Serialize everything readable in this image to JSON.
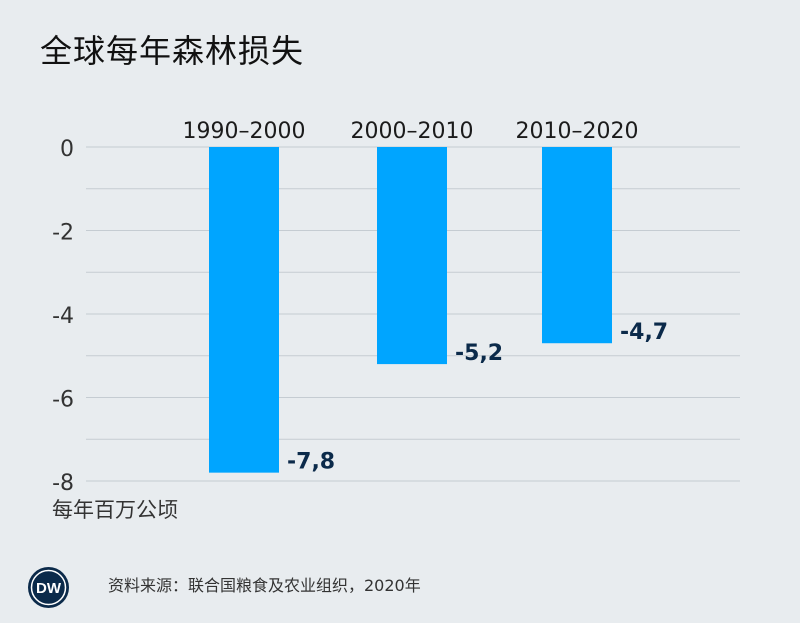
{
  "title": "全球每年森林损失",
  "unit_label": "每年百万公顷",
  "source": "资料来源：联合国粮食及农业组织，2020年",
  "logo_text": "DW",
  "colors": {
    "bar": "#00a5ff",
    "grid": "#c5ccd2",
    "axis_text": "#333333",
    "value_text": "#0b2a4a",
    "background": "#e8ecef"
  },
  "chart_data": {
    "type": "bar",
    "categories": [
      "1990–2000",
      "2000–2010",
      "2010–2020"
    ],
    "values": [
      -7.8,
      -5.2,
      -4.7
    ],
    "value_labels": [
      "-7,8",
      "-5,2",
      "-4,7"
    ],
    "yticks": [
      0,
      -2,
      -4,
      -6,
      -8
    ],
    "ytick_labels": [
      "0",
      "-2",
      "-4",
      "-6",
      "-8"
    ],
    "ylim": [
      -8,
      0
    ],
    "grid": true,
    "ylabel": "每年百万公顷"
  }
}
